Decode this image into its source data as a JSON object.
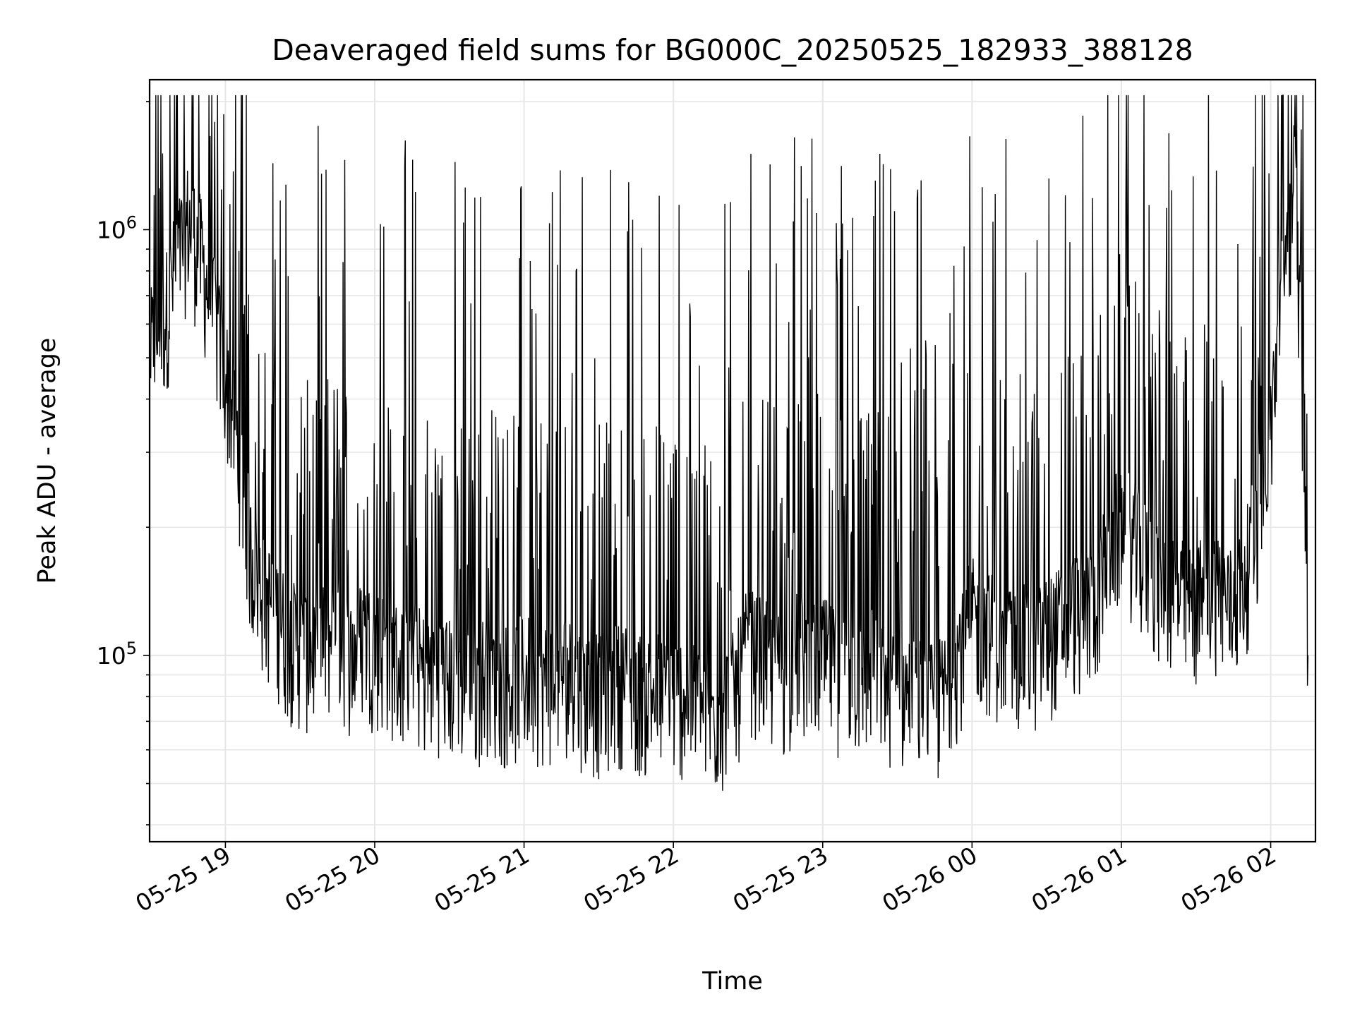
{
  "chart_data": {
    "type": "line",
    "title": "Deaveraged field sums for BG000C_20250525_182933_388128",
    "xlabel": "Time",
    "ylabel": "Peak ADU - average",
    "y_scale": "log",
    "grid": true,
    "line_color": "#000000",
    "grid_color": "#e6e6e6",
    "xlim": [
      "05-25 18:29:33",
      "05-26 02:18:00"
    ],
    "ylim": [
      36500,
      2250000
    ],
    "x_ticks": [
      "05-25 19",
      "05-25 20",
      "05-25 21",
      "05-25 22",
      "05-25 23",
      "05-26 00",
      "05-26 01",
      "05-26 02"
    ],
    "y_ticks": [
      {
        "value": 100000,
        "base": "10",
        "exp": "5"
      },
      {
        "value": 1000000,
        "base": "10",
        "exp": "6"
      }
    ],
    "series": [
      {
        "x": [
          "05-25 18:30",
          "05-25 18:35",
          "05-25 18:40",
          "05-25 18:45",
          "05-25 18:50",
          "05-25 18:55",
          "05-25 19:00",
          "05-25 19:05",
          "05-25 19:10",
          "05-25 19:15",
          "05-25 19:20",
          "05-25 19:25",
          "05-25 19:30",
          "05-25 19:35",
          "05-25 19:40",
          "05-25 19:45",
          "05-25 19:50",
          "05-25 19:55",
          "05-25 20:00",
          "05-25 20:05",
          "05-25 20:10",
          "05-25 20:15",
          "05-25 20:20",
          "05-25 20:25",
          "05-25 20:30",
          "05-25 20:35",
          "05-25 20:40",
          "05-25 20:45",
          "05-25 20:50",
          "05-25 20:55",
          "05-25 21:00",
          "05-25 21:05",
          "05-25 21:10",
          "05-25 21:15",
          "05-25 21:20",
          "05-25 21:25",
          "05-25 21:30",
          "05-25 21:35",
          "05-25 21:40",
          "05-25 21:45",
          "05-25 21:50",
          "05-25 21:55",
          "05-25 22:00",
          "05-25 22:05",
          "05-25 22:10",
          "05-25 22:15",
          "05-25 22:20",
          "05-25 22:25",
          "05-25 22:30",
          "05-25 22:35",
          "05-25 22:40",
          "05-25 22:45",
          "05-25 22:50",
          "05-25 22:55",
          "05-25 23:00",
          "05-25 23:05",
          "05-25 23:10",
          "05-25 23:15",
          "05-25 23:20",
          "05-25 23:25",
          "05-25 23:30",
          "05-25 23:35",
          "05-25 23:40",
          "05-25 23:45",
          "05-25 23:50",
          "05-25 23:55",
          "05-26 00:00",
          "05-26 00:05",
          "05-26 00:10",
          "05-26 00:15",
          "05-26 00:20",
          "05-26 00:25",
          "05-26 00:30",
          "05-26 00:35",
          "05-26 00:40",
          "05-26 00:45",
          "05-26 00:50",
          "05-26 00:55",
          "05-26 01:00",
          "05-26 01:05",
          "05-26 01:10",
          "05-26 01:15",
          "05-26 01:20",
          "05-26 01:25",
          "05-26 01:30",
          "05-26 01:35",
          "05-26 01:40",
          "05-26 01:45",
          "05-26 01:50",
          "05-26 01:55",
          "05-26 02:00",
          "05-26 02:05",
          "05-26 02:10",
          "05-26 02:15"
        ],
        "y": [
          450000,
          520000,
          700000,
          900000,
          750000,
          550000,
          400000,
          270000,
          150000,
          120000,
          110000,
          95000,
          90000,
          88000,
          92000,
          100000,
          85000,
          95000,
          90000,
          88000,
          82000,
          85000,
          78000,
          80000,
          76000,
          74000,
          72000,
          80000,
          75000,
          73000,
          78000,
          76000,
          74000,
          80000,
          75000,
          72000,
          70000,
          73000,
          75000,
          71000,
          70000,
          72000,
          68000,
          70000,
          66000,
          62000,
          64000,
          72000,
          90000,
          85000,
          80000,
          78000,
          88000,
          82000,
          85000,
          80000,
          78000,
          76000,
          80000,
          75000,
          73000,
          70000,
          68000,
          66000,
          72000,
          90000,
          105000,
          100000,
          95000,
          90000,
          92000,
          88000,
          95000,
          100000,
          110000,
          105000,
          120000,
          150000,
          180000,
          160000,
          140000,
          130000,
          125000,
          115000,
          110000,
          130000,
          120000,
          110000,
          135000,
          180000,
          300000,
          650000,
          1200000,
          100000
        ]
      }
    ]
  }
}
